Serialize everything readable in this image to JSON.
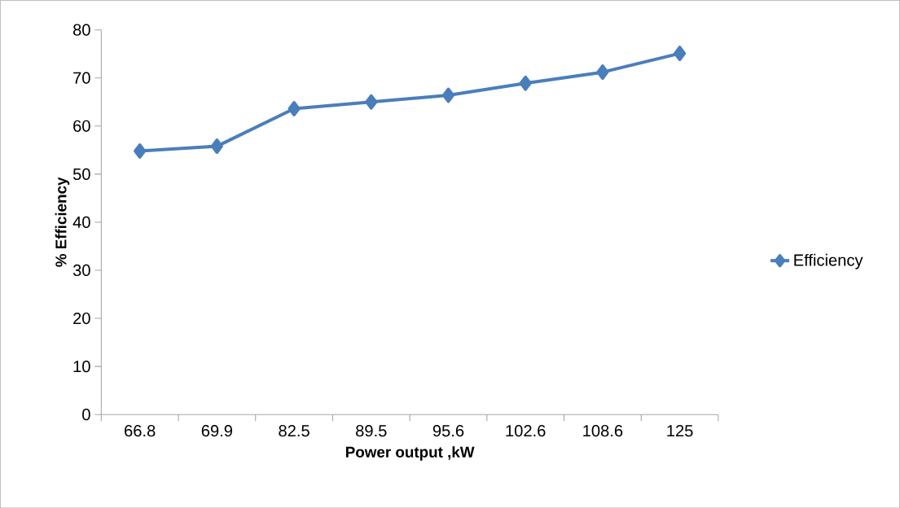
{
  "chart_data": {
    "type": "line",
    "xlabel": "Power  output ,kW",
    "ylabel": "% Efficiency",
    "categories": [
      "66.8",
      "69.9",
      "82.5",
      "89.5",
      "95.6",
      "102.6",
      "108.6",
      "125"
    ],
    "series": [
      {
        "name": "Efficiency",
        "color": "#4a7ebb",
        "values": [
          54.8,
          55.8,
          63.6,
          65.0,
          66.4,
          68.9,
          71.2,
          75.1
        ]
      }
    ],
    "ylim": [
      0,
      80
    ],
    "yticks": [
      0,
      10,
      20,
      30,
      40,
      50,
      60,
      70,
      80
    ],
    "legend": "right",
    "marker": "diamond",
    "line_style": "solid"
  }
}
